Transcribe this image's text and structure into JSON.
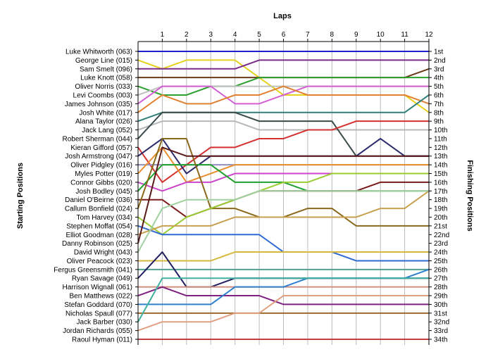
{
  "chart_data": {
    "type": "line",
    "title": "",
    "xlabel": "Laps",
    "ylabel_left": "Starting Positions",
    "ylabel_right": "Finishing Positions",
    "x": [
      0,
      1,
      2,
      3,
      4,
      5,
      6,
      7,
      8,
      9,
      10,
      11,
      12
    ],
    "x_tick_labels": [
      "1",
      "2",
      "3",
      "4",
      "5",
      "6",
      "7",
      "8",
      "9",
      "10",
      "11",
      "12"
    ],
    "xlim": [
      0,
      12
    ],
    "ylim": [
      1,
      34
    ],
    "y_inverted": true,
    "grid_vertical": true,
    "finishing_labels": [
      "1st",
      "2nd",
      "3rd",
      "4th",
      "5th",
      "6th",
      "7th",
      "8th",
      "9th",
      "10th",
      "11th",
      "12th",
      "13th",
      "14th",
      "15th",
      "16th",
      "17th",
      "18th",
      "19th",
      "20th",
      "21st",
      "22nd",
      "23rd",
      "24th",
      "25th",
      "26th",
      "27th",
      "28th",
      "29th",
      "30th",
      "31st",
      "32nd",
      "33rd",
      "34th"
    ],
    "series": [
      {
        "name": "Luke Whitworth (063)",
        "color": "#1f1fc8",
        "values": [
          1,
          1,
          1,
          1,
          1,
          1,
          1,
          1,
          1,
          1,
          1,
          1,
          1
        ]
      },
      {
        "name": "George Line (015)",
        "color": "#e6d21e",
        "values": [
          2,
          3,
          2,
          2,
          2,
          4,
          6,
          6,
          6,
          6,
          6,
          6,
          8
        ]
      },
      {
        "name": "Sam Smelt (096)",
        "color": "#7a2a8a",
        "values": [
          3,
          3,
          3,
          3,
          3,
          2,
          2,
          2,
          2,
          2,
          2,
          2,
          2
        ]
      },
      {
        "name": "Luke Knott (058)",
        "color": "#6a3a1a",
        "values": [
          4,
          4,
          4,
          4,
          4,
          4,
          4,
          4,
          4,
          4,
          4,
          4,
          3
        ]
      },
      {
        "name": "Oliver Norris (033)",
        "color": "#2ca02c",
        "values": [
          5,
          6,
          6,
          5,
          5,
          4,
          4,
          4,
          4,
          4,
          4,
          4,
          4
        ]
      },
      {
        "name": "Levi Coombs (003)",
        "color": "#c0c0c0",
        "values": [
          6,
          5,
          5,
          5,
          5,
          5,
          5,
          5,
          5,
          5,
          5,
          5,
          5
        ]
      },
      {
        "name": "James Johnson (035)",
        "color": "#d45fd4",
        "values": [
          7,
          5,
          5,
          5,
          7,
          7,
          6,
          5,
          5,
          5,
          5,
          5,
          5
        ]
      },
      {
        "name": "Josh White (017)",
        "color": "#e08030",
        "values": [
          8,
          6,
          7,
          7,
          6,
          6,
          5,
          6,
          6,
          6,
          6,
          6,
          7
        ]
      },
      {
        "name": "Alana Taylor (026)",
        "color": "#30807a",
        "values": [
          9,
          8,
          8,
          8,
          8,
          8,
          8,
          8,
          8,
          8,
          8,
          8,
          6
        ]
      },
      {
        "name": "Jack Lang (052)",
        "color": "#b8b8b8",
        "values": [
          10,
          9,
          9,
          9,
          9,
          10,
          10,
          10,
          10,
          10,
          10,
          10,
          10
        ]
      },
      {
        "name": "Robert Sherman (044)",
        "color": "#3a4a4a",
        "values": [
          11,
          8,
          8,
          8,
          8,
          9,
          9,
          9,
          9,
          13,
          13,
          13,
          13
        ]
      },
      {
        "name": "Kieran Gifford (057)",
        "color": "#d43030",
        "values": [
          12,
          16,
          14,
          12,
          12,
          11,
          11,
          10,
          10,
          9,
          9,
          9,
          9
        ]
      },
      {
        "name": "Josh Armstrong (047)",
        "color": "#2a2a6a",
        "values": [
          13,
          11,
          15,
          13,
          13,
          13,
          13,
          13,
          13,
          13,
          11,
          13,
          13
        ]
      },
      {
        "name": "Oliver Pidgley (016)",
        "color": "#9090c0",
        "values": [
          14,
          14,
          14,
          14,
          14,
          14,
          14,
          14,
          14,
          14,
          14,
          14,
          14
        ]
      },
      {
        "name": "Myles Potter (019)",
        "color": "#e89030",
        "values": [
          15,
          12,
          16,
          15,
          14,
          14,
          14,
          14,
          14,
          14,
          14,
          14,
          14
        ]
      },
      {
        "name": "Connor Gibbs (020)",
        "color": "#cc44cc",
        "values": [
          16,
          17,
          16,
          16,
          15,
          15,
          15,
          15,
          15,
          15,
          15,
          15,
          15
        ]
      },
      {
        "name": "Josh Bodley (045)",
        "color": "#1fa02f",
        "values": [
          17,
          14,
          14,
          14,
          16,
          16,
          16,
          17,
          17,
          17,
          17,
          17,
          17
        ]
      },
      {
        "name": "Daniel O'Beirne (036)",
        "color": "#7a1a1a",
        "values": [
          18,
          18,
          20,
          19,
          18,
          17,
          17,
          17,
          17,
          17,
          16,
          16,
          16
        ]
      },
      {
        "name": "Callum Bonfield (024)",
        "color": "#8a6a1a",
        "values": [
          19,
          11,
          11,
          19,
          19,
          20,
          20,
          19,
          19,
          21,
          21,
          21,
          21
        ]
      },
      {
        "name": "Tom Harvey (034)",
        "color": "#9acd32",
        "values": [
          20,
          22,
          20,
          19,
          18,
          17,
          16,
          16,
          15,
          15,
          15,
          15,
          15
        ]
      },
      {
        "name": "Stephen Moffat (054)",
        "color": "#2f6ad4",
        "values": [
          21,
          22,
          22,
          22,
          22,
          22,
          24,
          24,
          24,
          25,
          25,
          25,
          25
        ]
      },
      {
        "name": "Elliot Goodman (028)",
        "color": "#c8a050",
        "values": [
          22,
          21,
          21,
          21,
          20,
          20,
          20,
          20,
          20,
          20,
          19,
          19,
          17
        ]
      },
      {
        "name": "Danny Robinson (025)",
        "color": "#5a1a1a",
        "values": [
          23,
          12,
          13,
          13,
          13,
          13,
          13,
          13,
          13,
          13,
          13,
          13,
          13
        ]
      },
      {
        "name": "David Wright (043)",
        "color": "#a0d0a0",
        "values": [
          24,
          19,
          18,
          18,
          18,
          17,
          17,
          17,
          17,
          17,
          17,
          17,
          17
        ]
      },
      {
        "name": "Oliver Peacock (023)",
        "color": "#d4b840",
        "values": [
          25,
          25,
          25,
          25,
          24,
          24,
          24,
          24,
          24,
          24,
          24,
          24,
          24
        ]
      },
      {
        "name": "Fergus Greensmith (041)",
        "color": "#50a090",
        "values": [
          26,
          26,
          26,
          26,
          26,
          26,
          26,
          26,
          26,
          26,
          26,
          26,
          26
        ]
      },
      {
        "name": "Ryan Savage (049)",
        "color": "#202060",
        "values": [
          27,
          24,
          28,
          28,
          27,
          27,
          27,
          27,
          27,
          27,
          27,
          27,
          27
        ]
      },
      {
        "name": "Harrison Wignall (061)",
        "color": "#d09080",
        "values": [
          28,
          28,
          28,
          28,
          28,
          28,
          28,
          28,
          28,
          28,
          28,
          28,
          28
        ]
      },
      {
        "name": "Ben Matthews (022)",
        "color": "#802080",
        "values": [
          29,
          28,
          29,
          29,
          29,
          29,
          30,
          30,
          30,
          30,
          30,
          30,
          30
        ]
      },
      {
        "name": "Stefan Goddard (070)",
        "color": "#3080d0",
        "values": [
          30,
          30,
          30,
          30,
          28,
          28,
          28,
          27,
          27,
          27,
          27,
          27,
          26
        ]
      },
      {
        "name": "Nicholas Spaull (077)",
        "color": "#a06a2a",
        "values": [
          31,
          31,
          31,
          31,
          31,
          31,
          31,
          31,
          31,
          31,
          31,
          31,
          31
        ]
      },
      {
        "name": "Jack Barber (030)",
        "color": "#40b0a0",
        "values": [
          32,
          27,
          27,
          27,
          27,
          27,
          27,
          27,
          27,
          27,
          27,
          27,
          27
        ]
      },
      {
        "name": "Jordan Richards (055)",
        "color": "#e0a080",
        "values": [
          33,
          32,
          32,
          32,
          31,
          31,
          29,
          29,
          29,
          29,
          29,
          29,
          29
        ]
      },
      {
        "name": "Raoul Hyman (011)",
        "color": "#c04040",
        "values": [
          34,
          34,
          34,
          34,
          34,
          34,
          34,
          34,
          34,
          34,
          34,
          34,
          34
        ]
      }
    ]
  }
}
